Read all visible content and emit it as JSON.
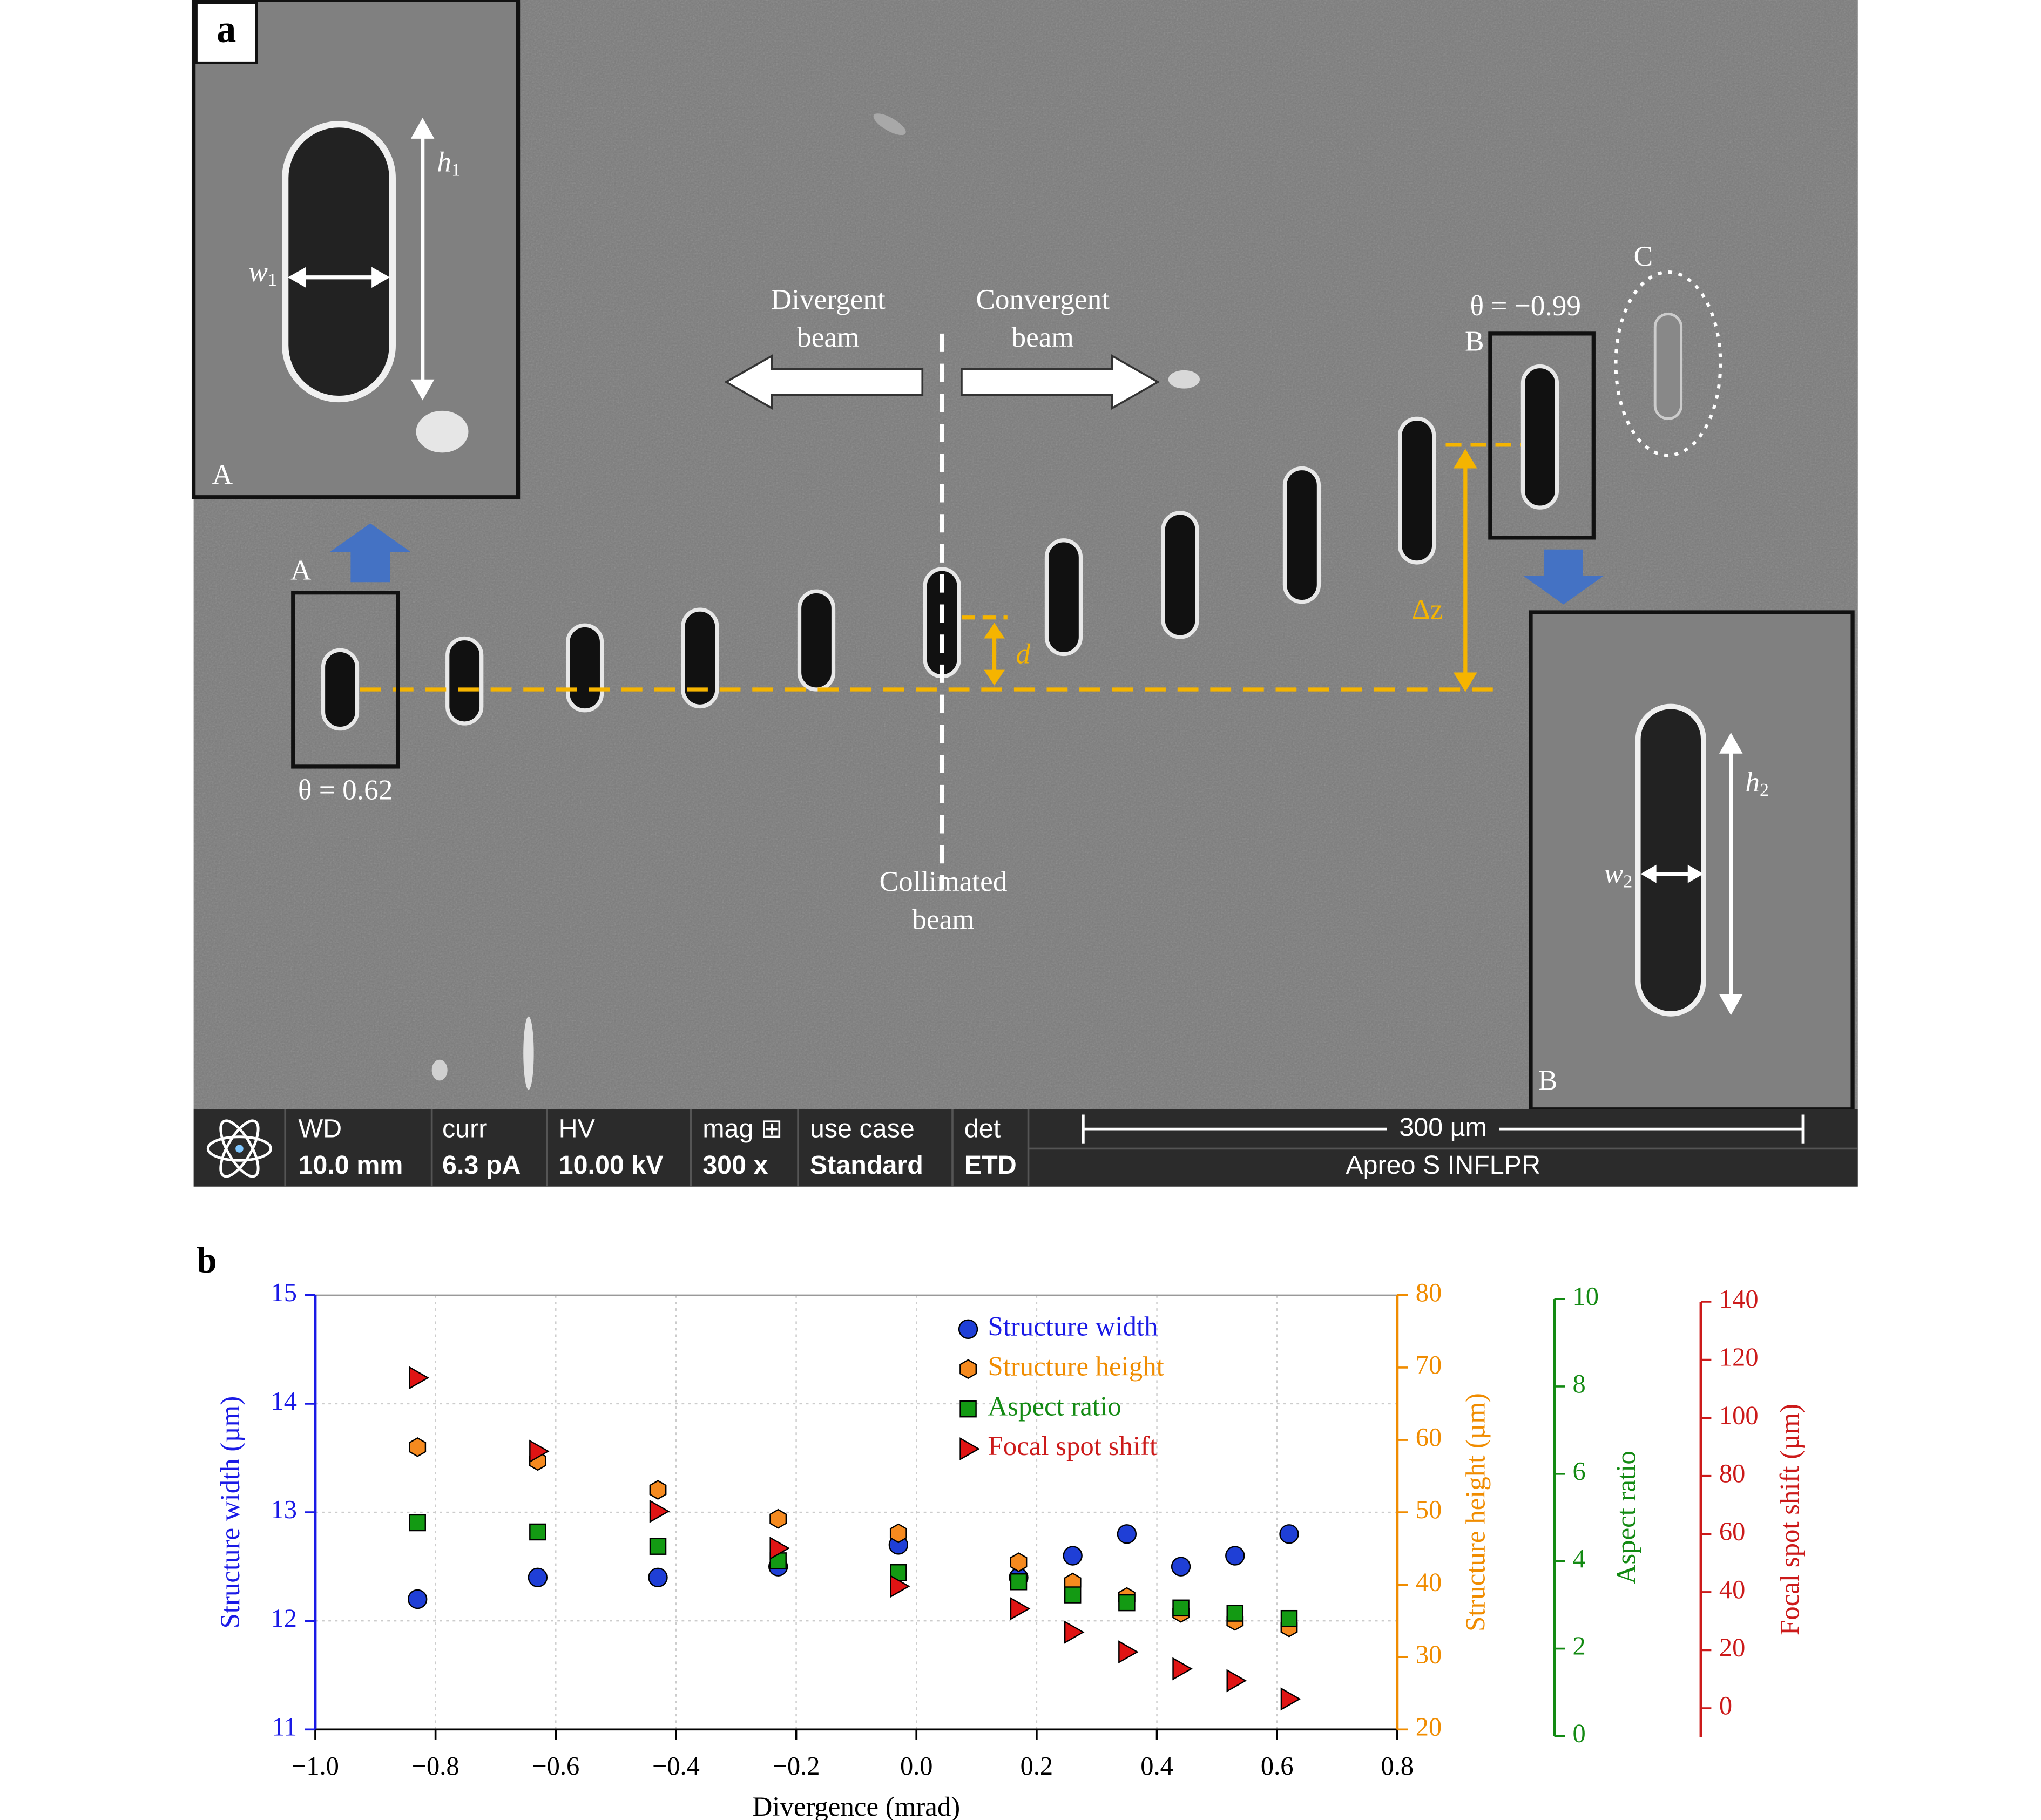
{
  "panel_a": {
    "panel_label": "a",
    "inset_a": {
      "h": [
        "h",
        "1"
      ],
      "w": [
        "w",
        "1"
      ],
      "corner": "A"
    },
    "marker_a": "A",
    "theta_a": "θ = 0.62",
    "divergent": [
      "Divergent",
      "beam"
    ],
    "convergent": [
      "Convergent",
      "beam"
    ],
    "collimated": [
      "Collimated",
      "beam"
    ],
    "theta_b": "θ = −0.99",
    "marker_b": "B",
    "marker_c": "C",
    "d": "d",
    "dz": "Δz",
    "inset_b": {
      "h": [
        "h",
        "2"
      ],
      "w": [
        "w",
        "2"
      ],
      "corner": "B"
    },
    "info_bar": {
      "fields": [
        [
          "WD",
          "10.0 mm"
        ],
        [
          "curr",
          "6.3 pA"
        ],
        [
          "HV",
          "10.00 kV"
        ],
        [
          "mag ⊞",
          "300 x"
        ],
        [
          "use case",
          "Standard"
        ],
        [
          "det",
          "ETD"
        ]
      ],
      "scale": "300 µm",
      "instrument": "Apreo S INFLPR"
    }
  },
  "chart_data": {
    "type": "scatter",
    "panel_label": "b",
    "xlabel": "Divergence (mrad)",
    "ylabel": "Structure width (µm)",
    "y2label": "Structure height (µm)",
    "y3label": "Aspect ratio",
    "y4label": "Focal spot shift (µm)",
    "x": [
      -0.83,
      -0.63,
      -0.43,
      -0.23,
      -0.03,
      0.17,
      0.26,
      0.35,
      0.44,
      0.53,
      0.62
    ],
    "xlim": [
      -1.0,
      0.8
    ],
    "xticks": [
      {
        "value": -1.0,
        "label": "−1.0"
      },
      {
        "value": -0.8,
        "label": "−0.8"
      },
      {
        "value": -0.6,
        "label": "−0.6"
      },
      {
        "value": -0.4,
        "label": "−0.4"
      },
      {
        "value": -0.2,
        "label": "−0.2"
      },
      {
        "value": 0,
        "label": "0.0"
      },
      0.2,
      0.4,
      0.6,
      0.8
    ],
    "ylim": [
      11,
      15
    ],
    "yticks": [
      11,
      12,
      13,
      14,
      15
    ],
    "y2lim": [
      20,
      80
    ],
    "y2ticks": [
      20,
      30,
      40,
      50,
      60,
      70,
      80
    ],
    "y3lim": [
      0,
      10
    ],
    "y3ticks": [
      0,
      2,
      4,
      6,
      8,
      10
    ],
    "y4lim": [
      -10,
      140
    ],
    "y4ticks": [
      0,
      20,
      40,
      60,
      80,
      100,
      120,
      140
    ],
    "axis_colors": {
      "y": "#1a1ae6",
      "y2": "#f08c00",
      "y3": "#138a13",
      "y4": "#cc1a1a"
    },
    "grid": true,
    "legend": "top-right",
    "series": [
      {
        "name": "Structure width",
        "color": "#1f3fd6",
        "marker": "circle",
        "axis": "y",
        "values": [
          12.2,
          12.4,
          12.4,
          12.5,
          12.7,
          12.4,
          12.6,
          12.8,
          12.5,
          12.6,
          12.8
        ]
      },
      {
        "name": "Structure height",
        "color": "#f58a1f",
        "marker": "hexagon",
        "axis": "y2",
        "values": [
          59.0,
          57.1,
          53.1,
          49.1,
          47.1,
          43.1,
          40.3,
          38.3,
          36.1,
          35.0,
          34.1
        ]
      },
      {
        "name": "Aspect ratio",
        "color": "#139a13",
        "marker": "square",
        "axis": "y3",
        "values": [
          4.88,
          4.67,
          4.34,
          4.01,
          3.74,
          3.53,
          3.23,
          3.05,
          2.93,
          2.81,
          2.69
        ]
      },
      {
        "name": "Focal spot shift",
        "color": "#e01414",
        "marker": "triangle-right",
        "axis": "y4",
        "values": [
          113.8,
          88.5,
          67.8,
          55.1,
          42.0,
          34.3,
          26.2,
          19.4,
          13.6,
          9.5,
          3.2
        ]
      }
    ]
  }
}
